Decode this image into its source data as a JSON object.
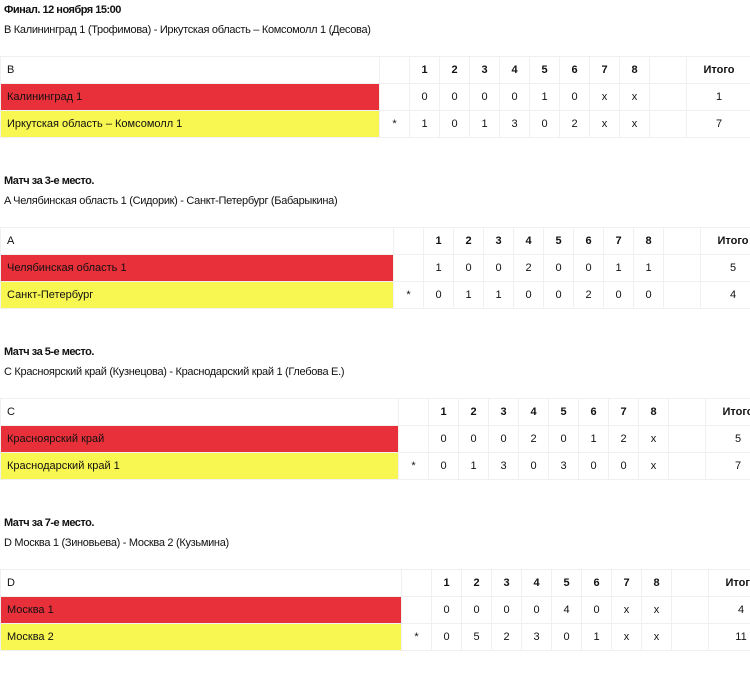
{
  "rounds": [
    "1",
    "2",
    "3",
    "4",
    "5",
    "6",
    "7",
    "8"
  ],
  "total_label": "Итого",
  "matches": [
    {
      "title": "Финал. 12 ноября 15:00",
      "subtitle": "B Калининград 1 (Трофимова) - Иркутская область – Комсомолл 1 (Десова)",
      "group": "B",
      "teams": [
        {
          "name": "Калининград 1",
          "star": "",
          "scores": [
            "0",
            "0",
            "0",
            "0",
            "1",
            "0",
            "x",
            "x"
          ],
          "total": "1"
        },
        {
          "name": "Иркутская область – Комсомолл 1",
          "star": "*",
          "scores": [
            "1",
            "0",
            "1",
            "3",
            "0",
            "2",
            "x",
            "x"
          ],
          "total": "7"
        }
      ]
    },
    {
      "title": "Матч за 3-е место.",
      "subtitle": "A Челябинская область 1 (Сидорик) - Санкт-Петербург (Бабарыкина)",
      "group": "A",
      "teams": [
        {
          "name": "Челябинская область 1",
          "star": "",
          "scores": [
            "1",
            "0",
            "0",
            "2",
            "0",
            "0",
            "1",
            "1"
          ],
          "total": "5"
        },
        {
          "name": "Санкт-Петербург",
          "star": "*",
          "scores": [
            "0",
            "1",
            "1",
            "0",
            "0",
            "2",
            "0",
            "0"
          ],
          "total": "4"
        }
      ]
    },
    {
      "title": "Матч за 5-е место.",
      "subtitle": "C Красноярский край (Кузнецова) - Краснодарский край 1 (Глебова Е.)",
      "group": "C",
      "teams": [
        {
          "name": "Красноярский край",
          "star": "",
          "scores": [
            "0",
            "0",
            "0",
            "2",
            "0",
            "1",
            "2",
            "x"
          ],
          "total": "5"
        },
        {
          "name": "Краснодарский край 1",
          "star": "*",
          "scores": [
            "0",
            "1",
            "3",
            "0",
            "3",
            "0",
            "0",
            "x"
          ],
          "total": "7"
        }
      ]
    },
    {
      "title": "Матч за 7-е место.",
      "subtitle": "D Москва 1 (Зиновьева) - Москва 2 (Кузьмина)",
      "group": "D",
      "teams": [
        {
          "name": "Москва 1",
          "star": "",
          "scores": [
            "0",
            "0",
            "0",
            "0",
            "4",
            "0",
            "x",
            "x"
          ],
          "total": "4"
        },
        {
          "name": "Москва 2",
          "star": "*",
          "scores": [
            "0",
            "5",
            "2",
            "3",
            "0",
            "1",
            "x",
            "x"
          ],
          "total": "11"
        }
      ]
    }
  ],
  "colors": {
    "loser": "#e8303a",
    "winner": "#f8f650"
  }
}
